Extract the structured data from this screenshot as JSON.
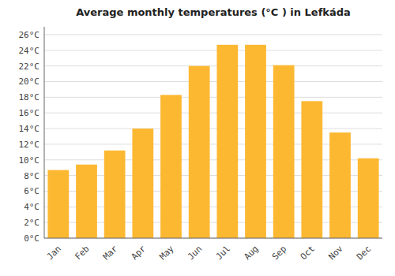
{
  "chart_data": {
    "type": "bar",
    "title": "Average monthly temperatures (°C ) in Lefkáda",
    "categories": [
      "Jan",
      "Feb",
      "Mar",
      "Apr",
      "May",
      "Jun",
      "Jul",
      "Aug",
      "Sep",
      "Oct",
      "Nov",
      "Dec"
    ],
    "values": [
      8.7,
      9.4,
      11.2,
      14.0,
      18.3,
      22.0,
      24.7,
      24.7,
      22.1,
      17.5,
      13.5,
      10.2
    ],
    "color": "#FDB832",
    "ylim": [
      0,
      27
    ],
    "yticks": [
      {
        "value": 0,
        "label": "0°C"
      },
      {
        "value": 2,
        "label": "2°C"
      },
      {
        "value": 4,
        "label": "4°C"
      },
      {
        "value": 6,
        "label": "6°C"
      },
      {
        "value": 8,
        "label": "8°C"
      },
      {
        "value": 10,
        "label": "10°C"
      },
      {
        "value": 12,
        "label": "12°C"
      },
      {
        "value": 14,
        "label": "14°C"
      },
      {
        "value": 16,
        "label": "16°C"
      },
      {
        "value": 18,
        "label": "18°C"
      },
      {
        "value": 20,
        "label": "20°C"
      },
      {
        "value": 22,
        "label": "22°C"
      },
      {
        "value": 24,
        "label": "24°C"
      },
      {
        "value": 26,
        "label": "26°C"
      }
    ],
    "grid": true
  }
}
